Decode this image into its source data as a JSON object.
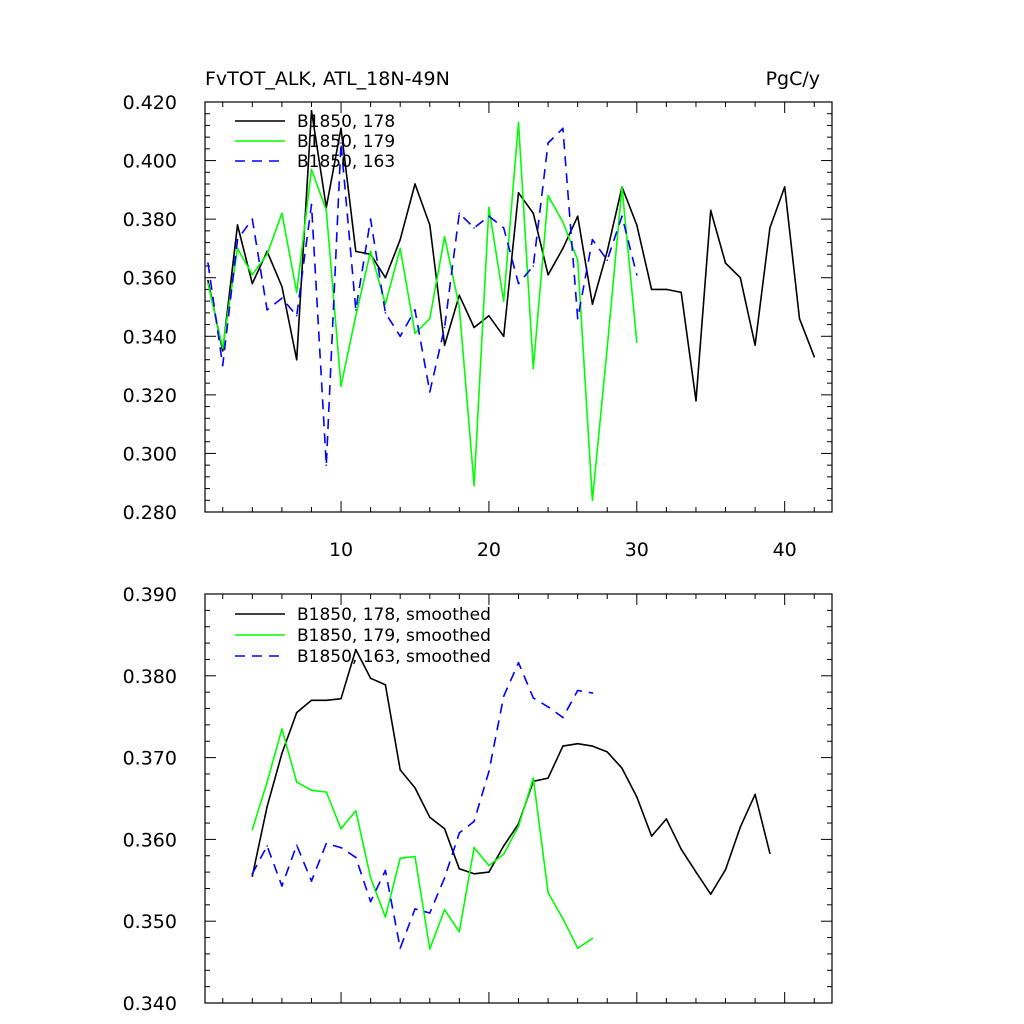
{
  "chart_data": [
    {
      "type": "line",
      "title": "FvTOT_ALK, ATL_18N-49N",
      "units": "PgC/y",
      "xlim": [
        0.8,
        43.2
      ],
      "ylim": [
        0.28,
        0.42
      ],
      "xticks": [
        10,
        20,
        30,
        40
      ],
      "xtick_labels": [
        "10",
        "20",
        "30",
        "40"
      ],
      "yticks": [
        0.28,
        0.3,
        0.32,
        0.34,
        0.36,
        0.38,
        0.4,
        0.42
      ],
      "ytick_labels": [
        "0.280",
        "0.300",
        "0.320",
        "0.340",
        "0.360",
        "0.380",
        "0.400",
        "0.420"
      ],
      "legend_position": "top-left",
      "series": [
        {
          "name": "B1850, 178",
          "color": "#000000",
          "dash": "solid",
          "x": [
            1,
            2,
            3,
            4,
            5,
            6,
            7,
            8,
            9,
            10,
            11,
            12,
            13,
            14,
            15,
            16,
            17,
            18,
            19,
            20,
            21,
            22,
            23,
            24,
            25,
            26,
            27,
            28,
            29,
            30,
            31,
            32,
            33,
            34,
            35,
            36,
            37,
            38,
            39,
            40,
            41,
            42
          ],
          "y": [
            0.359,
            0.335,
            0.378,
            0.358,
            0.369,
            0.357,
            0.332,
            0.417,
            0.384,
            0.411,
            0.369,
            0.368,
            0.36,
            0.373,
            0.392,
            0.378,
            0.337,
            0.354,
            0.343,
            0.347,
            0.34,
            0.389,
            0.382,
            0.361,
            0.37,
            0.381,
            0.351,
            0.369,
            0.391,
            0.378,
            0.356,
            0.356,
            0.355,
            0.318,
            0.383,
            0.365,
            0.36,
            0.337,
            0.377,
            0.391,
            0.346,
            0.333
          ]
        },
        {
          "name": "B1850, 179",
          "color": "#00ff00",
          "dash": "solid",
          "x": [
            1,
            2,
            3,
            4,
            5,
            6,
            7,
            8,
            9,
            10,
            11,
            12,
            13,
            14,
            15,
            16,
            17,
            18,
            19,
            20,
            21,
            22,
            23,
            24,
            25,
            26,
            27,
            28,
            29,
            30
          ],
          "y": [
            0.358,
            0.336,
            0.37,
            0.361,
            0.368,
            0.382,
            0.355,
            0.397,
            0.383,
            0.323,
            0.347,
            0.369,
            0.351,
            0.37,
            0.341,
            0.346,
            0.374,
            0.35,
            0.289,
            0.384,
            0.352,
            0.413,
            0.329,
            0.388,
            0.379,
            0.366,
            0.284,
            0.336,
            0.391,
            0.338
          ]
        },
        {
          "name": "B1850, 163",
          "color": "#0000ff",
          "dash": "dashed",
          "x": [
            1,
            2,
            3,
            4,
            5,
            6,
            7,
            8,
            9,
            10,
            11,
            12,
            13,
            14,
            15,
            16,
            17,
            18,
            19,
            20,
            21,
            22,
            23,
            24,
            25,
            26,
            27,
            28,
            29,
            30
          ],
          "y": [
            0.365,
            0.33,
            0.373,
            0.38,
            0.349,
            0.353,
            0.347,
            0.385,
            0.296,
            0.406,
            0.349,
            0.38,
            0.348,
            0.34,
            0.349,
            0.321,
            0.343,
            0.382,
            0.377,
            0.381,
            0.377,
            0.358,
            0.364,
            0.406,
            0.411,
            0.346,
            0.373,
            0.366,
            0.381,
            0.361
          ]
        }
      ]
    },
    {
      "type": "line",
      "title": "",
      "xlim": [
        0.8,
        43.2
      ],
      "ylim": [
        0.34,
        0.39
      ],
      "xticks": [
        10,
        20,
        30,
        40
      ],
      "xtick_labels": [],
      "yticks": [
        0.34,
        0.35,
        0.36,
        0.37,
        0.38,
        0.39
      ],
      "ytick_labels": [
        "0.340",
        "0.350",
        "0.360",
        "0.370",
        "0.380",
        "0.390"
      ],
      "legend_position": "top-left",
      "series": [
        {
          "name": "B1850, 178, smoothed",
          "color": "#000000",
          "dash": "solid",
          "x": [
            4,
            5,
            6,
            7,
            8,
            9,
            10,
            11,
            12,
            13,
            14,
            15,
            16,
            17,
            18,
            19,
            20,
            21,
            22,
            23,
            24,
            25,
            26,
            27,
            28,
            29,
            30,
            31,
            32,
            33,
            34,
            35,
            36,
            37,
            38,
            39
          ],
          "y": [
            0.3555,
            0.364,
            0.3705,
            0.3755,
            0.377,
            0.377,
            0.3772,
            0.3832,
            0.3797,
            0.3789,
            0.3685,
            0.3663,
            0.3627,
            0.3613,
            0.3564,
            0.3558,
            0.356,
            0.3592,
            0.3619,
            0.3671,
            0.3675,
            0.3714,
            0.3717,
            0.3714,
            0.3707,
            0.3687,
            0.3652,
            0.3604,
            0.3625,
            0.3588,
            0.356,
            0.3533,
            0.3563,
            0.3615,
            0.3655,
            0.3583
          ]
        },
        {
          "name": "B1850, 179, smoothed",
          "color": "#00ff00",
          "dash": "solid",
          "x": [
            4,
            5,
            6,
            7,
            8,
            9,
            10,
            11,
            12,
            13,
            14,
            15,
            16,
            17,
            18,
            19,
            20,
            21,
            22,
            23,
            24,
            25,
            26,
            27
          ],
          "y": [
            0.3612,
            0.367,
            0.3735,
            0.367,
            0.366,
            0.3658,
            0.3613,
            0.3635,
            0.3553,
            0.3505,
            0.3577,
            0.3579,
            0.3466,
            0.3514,
            0.3487,
            0.359,
            0.3568,
            0.3582,
            0.3616,
            0.3675,
            0.3535,
            0.3503,
            0.3467,
            0.3479
          ]
        },
        {
          "name": "B1850, 163, smoothed",
          "color": "#0000ff",
          "dash": "dashed",
          "x": [
            4,
            5,
            6,
            7,
            8,
            9,
            10,
            11,
            12,
            13,
            14,
            15,
            16,
            17,
            18,
            19,
            20,
            21,
            22,
            23,
            24,
            25,
            26,
            27
          ],
          "y": [
            0.3558,
            0.3592,
            0.3543,
            0.3593,
            0.3549,
            0.3595,
            0.359,
            0.3578,
            0.3524,
            0.3562,
            0.3467,
            0.3515,
            0.351,
            0.3553,
            0.3608,
            0.3622,
            0.3683,
            0.3775,
            0.3816,
            0.3773,
            0.3762,
            0.3749,
            0.3782,
            0.3779
          ]
        }
      ]
    }
  ]
}
